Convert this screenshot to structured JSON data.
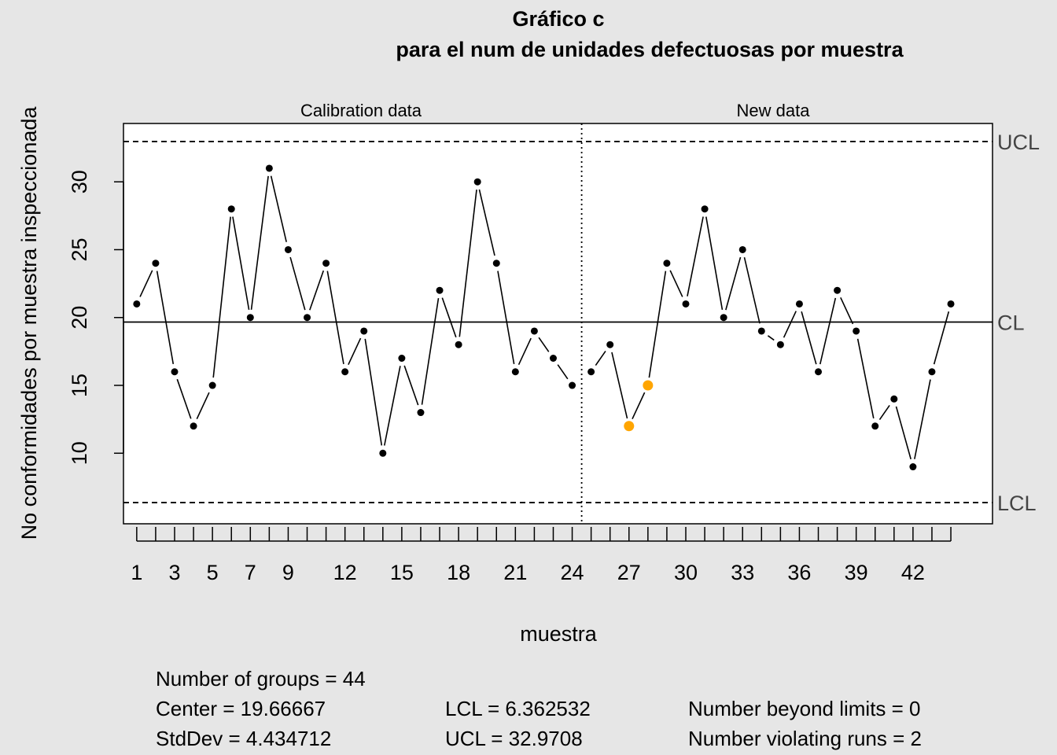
{
  "chart_data": {
    "type": "line",
    "title": "Gráfico c",
    "subtitle": "para el num de unidades defectuosas por muestra",
    "xlabel": "muestra",
    "ylabel": "No conformidades por muestra inspeccionada",
    "panel_labels": [
      "Calibration data",
      "New data"
    ],
    "x": [
      1,
      2,
      3,
      4,
      5,
      6,
      7,
      8,
      9,
      10,
      11,
      12,
      13,
      14,
      15,
      16,
      17,
      18,
      19,
      20,
      21,
      22,
      23,
      24,
      25,
      26,
      27,
      28,
      29,
      30,
      31,
      32,
      33,
      34,
      35,
      36,
      37,
      38,
      39,
      40,
      41,
      42,
      43,
      44
    ],
    "values": [
      21,
      24,
      16,
      12,
      15,
      28,
      20,
      31,
      25,
      20,
      24,
      16,
      19,
      10,
      17,
      13,
      22,
      18,
      30,
      24,
      16,
      19,
      17,
      15,
      16,
      18,
      12,
      15,
      24,
      21,
      28,
      20,
      25,
      19,
      18,
      21,
      16,
      22,
      19,
      12,
      14,
      9,
      16,
      21
    ],
    "violating_points": [
      27,
      28
    ],
    "calibration_groups": 24,
    "x_tick_labels": [
      1,
      3,
      5,
      7,
      9,
      12,
      15,
      18,
      21,
      24,
      27,
      30,
      33,
      36,
      39,
      42
    ],
    "y_ticks": [
      10,
      15,
      20,
      25,
      30
    ],
    "xlim": [
      0.3,
      46.2
    ],
    "ylim": [
      4.8,
      34.3
    ],
    "center": 19.66667,
    "lcl": 6.362532,
    "ucl": 32.9708,
    "limit_labels": {
      "ucl": "UCL",
      "cl": "CL",
      "lcl": "LCL"
    },
    "grid": false,
    "colors": {
      "points": "#000000",
      "violation": "#ffa500",
      "background": "#e6e6e6",
      "plot_area": "#ffffff"
    }
  },
  "stats": {
    "groups": "Number of groups = 44",
    "center": "Center = 19.66667",
    "stddev": "StdDev = 4.434712",
    "lcl": "LCL = 6.362532",
    "ucl": "UCL = 32.9708",
    "beyond": "Number beyond limits = 0",
    "runs": "Number violating runs = 2"
  }
}
